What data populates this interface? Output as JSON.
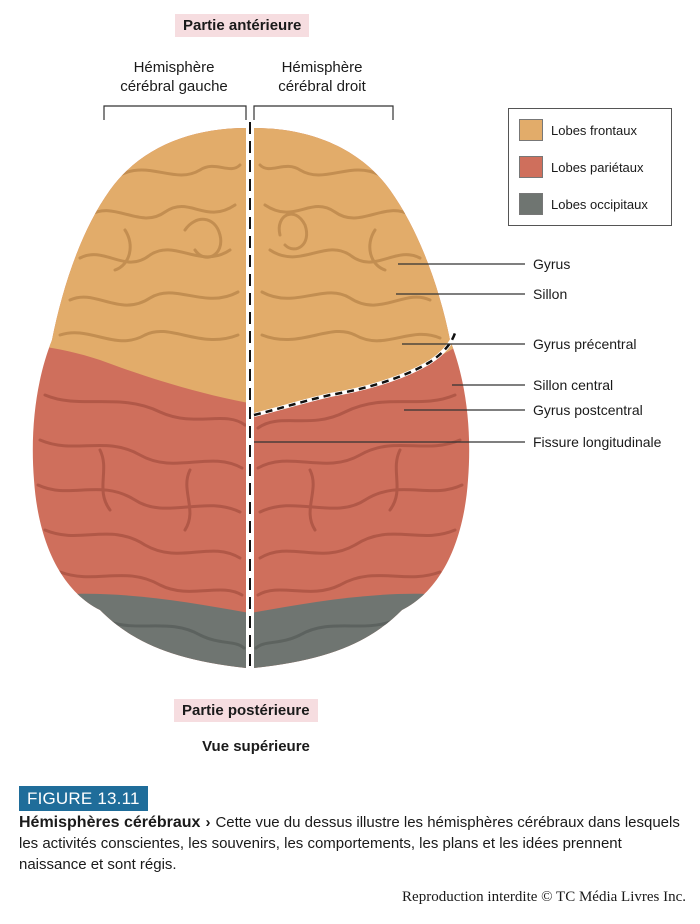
{
  "orientation": {
    "anterior": "Partie antérieure",
    "posterior": "Partie postérieure"
  },
  "hemispheres": {
    "left": [
      "Hémisphère",
      "cérébral gauche"
    ],
    "right": [
      "Hémisphère",
      "cérébral droit"
    ]
  },
  "legend": [
    {
      "label": "Lobes frontaux",
      "color": "#e2ac6a"
    },
    {
      "label": "Lobes pariétaux",
      "color": "#cf6f5c"
    },
    {
      "label": "Lobes occipitaux",
      "color": "#6f7571"
    }
  ],
  "callouts": [
    "Gyrus",
    "Sillon",
    "Gyrus précentral",
    "Sillon central",
    "Gyrus postcentral",
    "Fissure longitudinale"
  ],
  "view_label": "Vue supérieure",
  "figure": {
    "number": "FIGURE 13.11",
    "title": "Hémisphères cérébraux",
    "arrow": "›",
    "text": "Cette vue du dessus illustre les hémisphères cérébraux dans lesquels les activités conscientes, les souvenirs, les comportements, les plans et les idées prennent naissance et sont régis."
  },
  "credit": "Reproduction interdite © TC Média Livres Inc."
}
